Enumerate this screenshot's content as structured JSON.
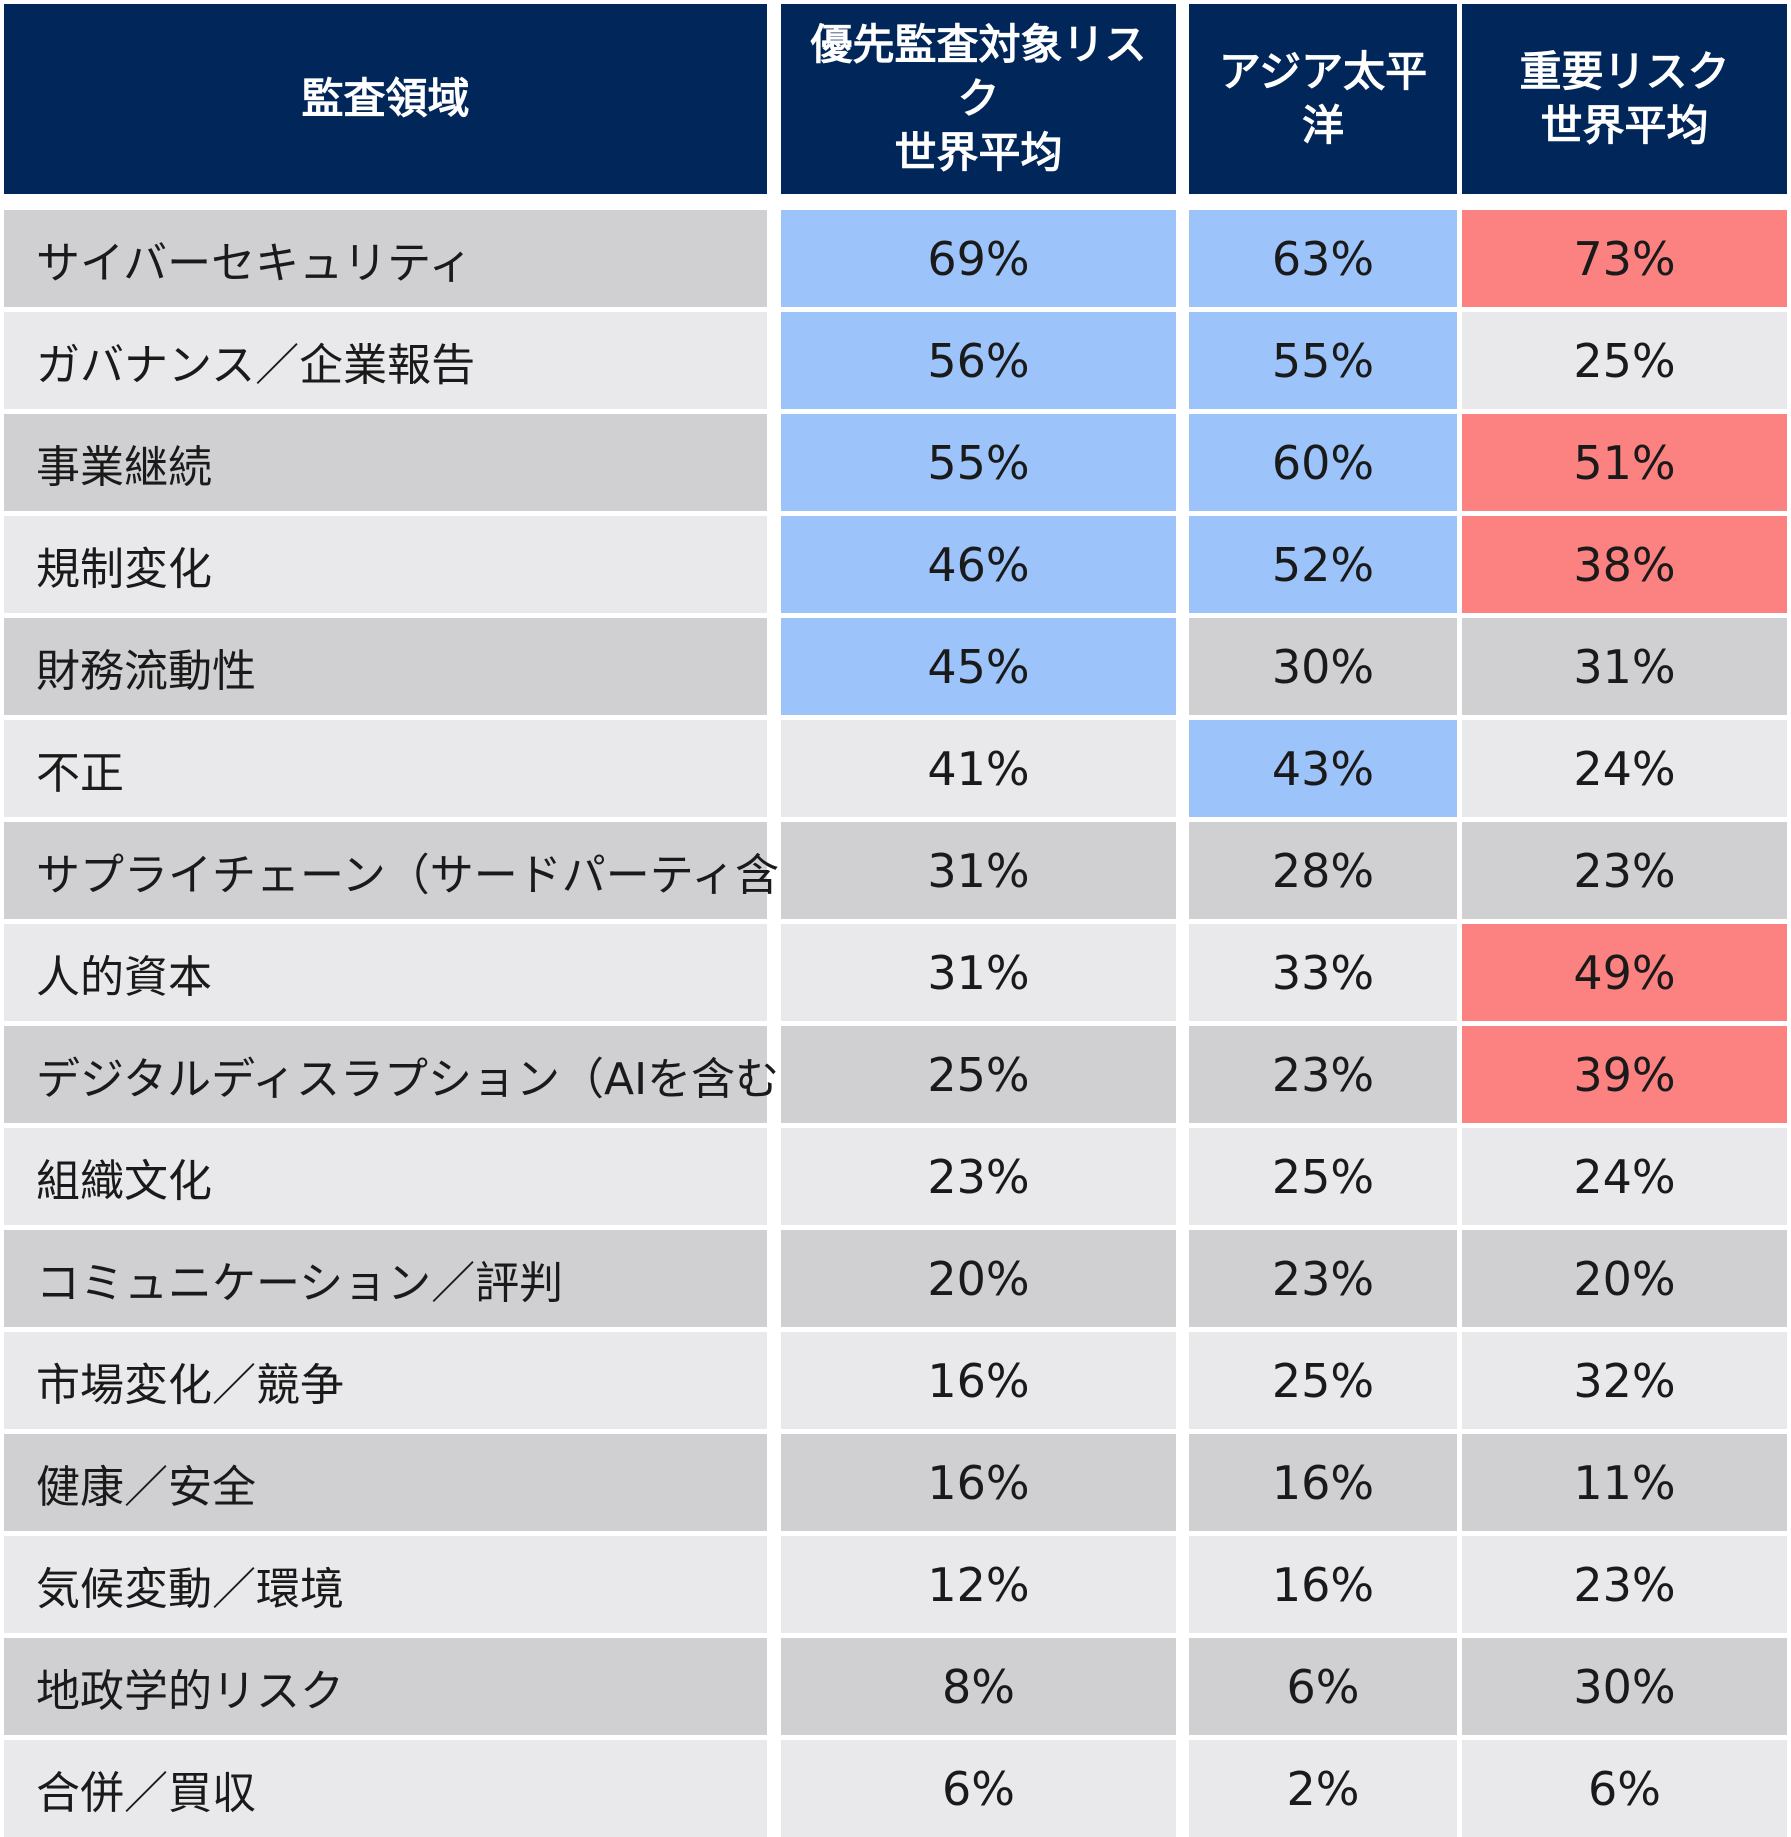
{
  "colors": {
    "header": "#00265a",
    "row_odd": "#d0d0d3",
    "row_even": "#e9e9eb",
    "highlight_blue": "#9cc3fa",
    "highlight_red": "#fc8181"
  },
  "chart_data": {
    "type": "table",
    "columns": [
      "監査領域",
      "優先監査対象リスク\n世界平均",
      "アジア太平\n洋",
      "重要リスク\n世界平均"
    ],
    "rows": [
      {
        "label": "サイバーセキュリティ",
        "values": [
          "69%",
          "63%",
          "73%"
        ],
        "highlight": [
          "blue",
          "blue",
          "red"
        ]
      },
      {
        "label": "ガバナンス／企業報告",
        "values": [
          "56%",
          "55%",
          "25%"
        ],
        "highlight": [
          "blue",
          "blue",
          ""
        ]
      },
      {
        "label": "事業継続",
        "values": [
          "55%",
          "60%",
          "51%"
        ],
        "highlight": [
          "blue",
          "blue",
          "red"
        ]
      },
      {
        "label": "規制変化",
        "values": [
          "46%",
          "52%",
          "38%"
        ],
        "highlight": [
          "blue",
          "blue",
          "red"
        ]
      },
      {
        "label": "財務流動性",
        "values": [
          "45%",
          "30%",
          "31%"
        ],
        "highlight": [
          "blue",
          "",
          ""
        ]
      },
      {
        "label": "不正",
        "values": [
          "41%",
          "43%",
          "24%"
        ],
        "highlight": [
          "",
          "blue",
          ""
        ]
      },
      {
        "label": "サプライチェーン（サードパーティ含む）",
        "values": [
          "31%",
          "28%",
          "23%"
        ],
        "highlight": [
          "",
          "",
          ""
        ]
      },
      {
        "label": "人的資本",
        "values": [
          "31%",
          "33%",
          "49%"
        ],
        "highlight": [
          "",
          "",
          "red"
        ]
      },
      {
        "label": "デジタルディスラプション（AIを含む）",
        "values": [
          "25%",
          "23%",
          "39%"
        ],
        "highlight": [
          "",
          "",
          "red"
        ]
      },
      {
        "label": "組織文化",
        "values": [
          "23%",
          "25%",
          "24%"
        ],
        "highlight": [
          "",
          "",
          ""
        ]
      },
      {
        "label": "コミュニケーション／評判",
        "values": [
          "20%",
          "23%",
          "20%"
        ],
        "highlight": [
          "",
          "",
          ""
        ]
      },
      {
        "label": "市場変化／競争",
        "values": [
          "16%",
          "25%",
          "32%"
        ],
        "highlight": [
          "",
          "",
          ""
        ]
      },
      {
        "label": "健康／安全",
        "values": [
          "16%",
          "16%",
          "11%"
        ],
        "highlight": [
          "",
          "",
          ""
        ]
      },
      {
        "label": "気候変動／環境",
        "values": [
          "12%",
          "16%",
          "23%"
        ],
        "highlight": [
          "",
          "",
          ""
        ]
      },
      {
        "label": "地政学的リスク",
        "values": [
          "8%",
          "6%",
          "30%"
        ],
        "highlight": [
          "",
          "",
          ""
        ]
      },
      {
        "label": "合併／買収",
        "values": [
          "6%",
          "2%",
          "6%"
        ],
        "highlight": [
          "",
          "",
          ""
        ]
      }
    ]
  }
}
